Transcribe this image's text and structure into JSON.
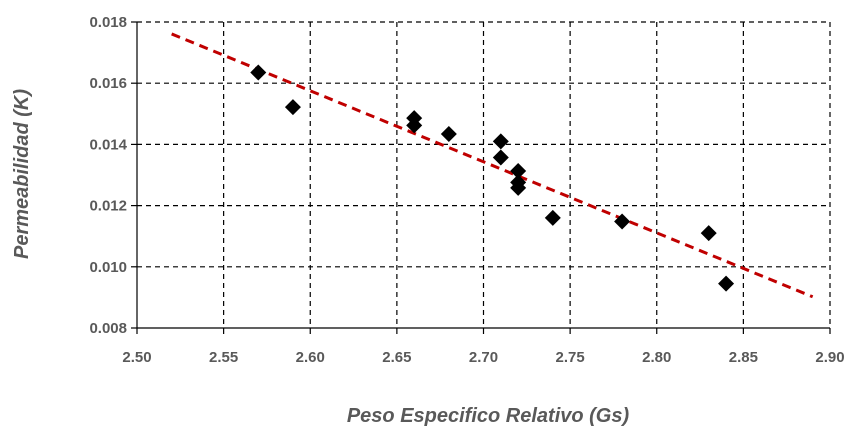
{
  "chart_data": {
    "type": "scatter",
    "title": "",
    "xlabel": "Peso Especifico Relativo (Gs)",
    "ylabel": "Permeabilidad (K)",
    "xlim": [
      2.5,
      2.9
    ],
    "ylim": [
      0.008,
      0.018
    ],
    "x_ticks": [
      "2.50",
      "2.55",
      "2.60",
      "2.65",
      "2.70",
      "2.75",
      "2.80",
      "2.85",
      "2.90"
    ],
    "y_ticks": [
      "0.008",
      "0.010",
      "0.012",
      "0.014",
      "0.016",
      "0.018"
    ],
    "grid": true,
    "legend": "none",
    "series": [
      {
        "marker": "diamond",
        "color": "#000000",
        "points": [
          {
            "x": 2.57,
            "y": 0.01635
          },
          {
            "x": 2.59,
            "y": 0.01522
          },
          {
            "x": 2.66,
            "y": 0.01486
          },
          {
            "x": 2.66,
            "y": 0.01462
          },
          {
            "x": 2.68,
            "y": 0.01434
          },
          {
            "x": 2.71,
            "y": 0.0141
          },
          {
            "x": 2.71,
            "y": 0.01357
          },
          {
            "x": 2.72,
            "y": 0.01313
          },
          {
            "x": 2.72,
            "y": 0.01276
          },
          {
            "x": 2.72,
            "y": 0.01258
          },
          {
            "x": 2.74,
            "y": 0.0116
          },
          {
            "x": 2.78,
            "y": 0.01148
          },
          {
            "x": 2.83,
            "y": 0.0111
          },
          {
            "x": 2.84,
            "y": 0.00945
          }
        ]
      }
    ],
    "trendline": {
      "type": "linear",
      "color": "#c00000",
      "style": "dashed",
      "x": [
        2.52,
        2.89
      ],
      "y": [
        0.01761,
        0.00902
      ]
    }
  }
}
